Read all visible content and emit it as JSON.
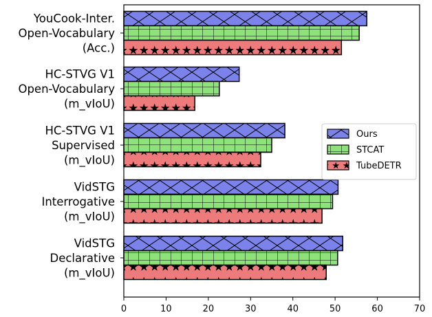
{
  "chart_data": {
    "type": "bar",
    "orientation": "horizontal",
    "categories": [
      [
        "YouCook-Inter.",
        "Open-Vocabulary",
        "(Acc.)"
      ],
      [
        "HC-STVG V1",
        "Open-Vocabulary",
        "(m_vIoU)"
      ],
      [
        "HC-STVG V1",
        "Supervised",
        "(m_vIoU)"
      ],
      [
        "VidSTG",
        "Interrogative",
        "(m_vIoU)"
      ],
      [
        "VidSTG",
        "Declarative",
        "(m_vIoU)"
      ]
    ],
    "series": [
      {
        "name": "Ours",
        "color": "#7b83eb",
        "hatch": "x",
        "values": [
          57.5,
          27.3,
          38.1,
          50.7,
          51.8
        ]
      },
      {
        "name": "STCAT",
        "color": "#8de37a",
        "hatch": "+",
        "values": [
          55.7,
          22.6,
          35.0,
          49.4,
          50.6
        ]
      },
      {
        "name": "TubeDETR",
        "color": "#ed7b7b",
        "hatch": "*",
        "values": [
          51.5,
          16.8,
          32.4,
          46.9,
          47.9
        ]
      }
    ],
    "xlim": [
      0,
      70
    ],
    "xticks": [
      0,
      10,
      20,
      30,
      40,
      50,
      60,
      70
    ],
    "legend": "center-right",
    "grid": false
  }
}
